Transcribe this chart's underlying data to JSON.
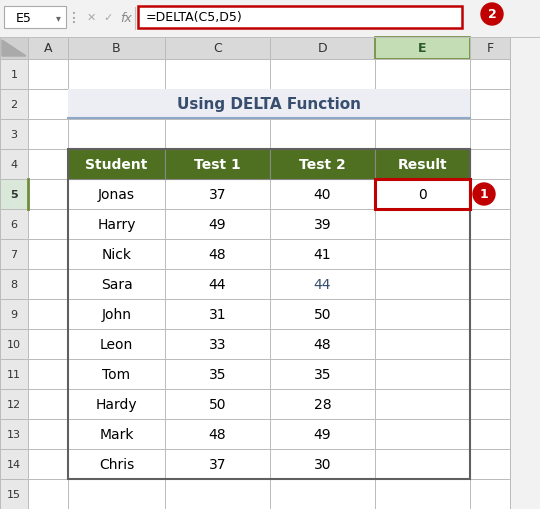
{
  "title": "Using DELTA Function",
  "formula_bar_text": "=DELTA(C5,D5)",
  "cell_ref": "E5",
  "header_cols": [
    "Student",
    "Test 1",
    "Test 2",
    "Result"
  ],
  "rows": [
    [
      "Jonas",
      "37",
      "40",
      "0"
    ],
    [
      "Harry",
      "49",
      "39",
      ""
    ],
    [
      "Nick",
      "48",
      "41",
      ""
    ],
    [
      "Sara",
      "44",
      "44",
      ""
    ],
    [
      "John",
      "31",
      "50",
      ""
    ],
    [
      "Leon",
      "33",
      "48",
      ""
    ],
    [
      "Tom",
      "35",
      "35",
      ""
    ],
    [
      "Hardy",
      "50",
      "28",
      ""
    ],
    [
      "Mark",
      "48",
      "49",
      ""
    ],
    [
      "Chris",
      "37",
      "30",
      ""
    ]
  ],
  "header_bg": "#4E7020",
  "header_text": "#FFFFFF",
  "title_bg": "#ECEEF4",
  "title_text": "#374E6E",
  "grid_color": "#BBBBBB",
  "excel_bg": "#F2F2F2",
  "col_header_bg": "#D9D9D9",
  "row_header_bg": "#E8E8E8",
  "active_col_bg": "#C5DDB5",
  "active_col_border": "#6E8C3A",
  "active_row_bg": "#D9E8D9",
  "sara_test2_color": "#374E6E",
  "badge_red": "#C00000",
  "formula_border": "#C00000",
  "result_cell_border": "#C00000",
  "title_underline": "#8FA8C8",
  "outer_table_border": "#606060"
}
